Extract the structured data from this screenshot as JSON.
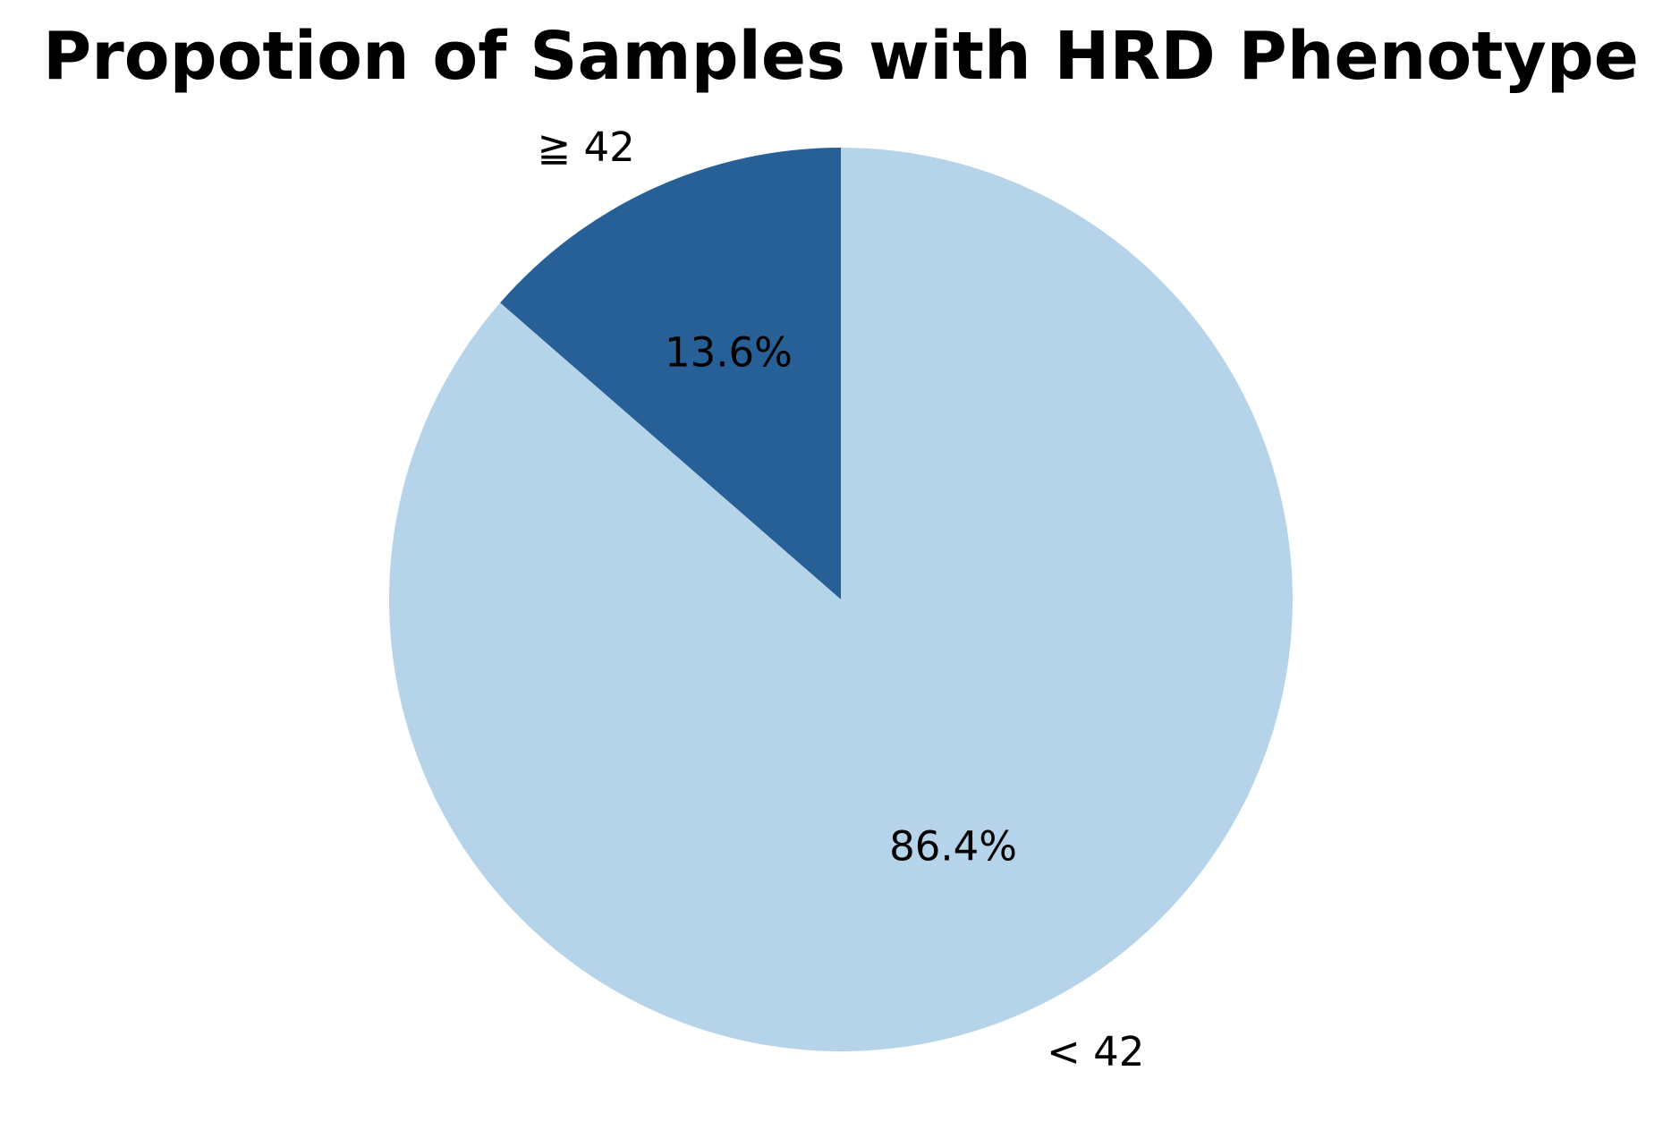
{
  "chart_data": {
    "type": "pie",
    "title": "Propotion of Samples with HRD Phenotype",
    "slices": [
      {
        "label": "≧ 42",
        "value": 13.6,
        "pct_label": "13.6%",
        "color": "#266097"
      },
      {
        "label": "< 42",
        "value": 86.4,
        "pct_label": "86.4%",
        "color": "#b5d4ea"
      }
    ],
    "start_angle_deg": 90,
    "direction": "counterclockwise",
    "legend": "none"
  }
}
